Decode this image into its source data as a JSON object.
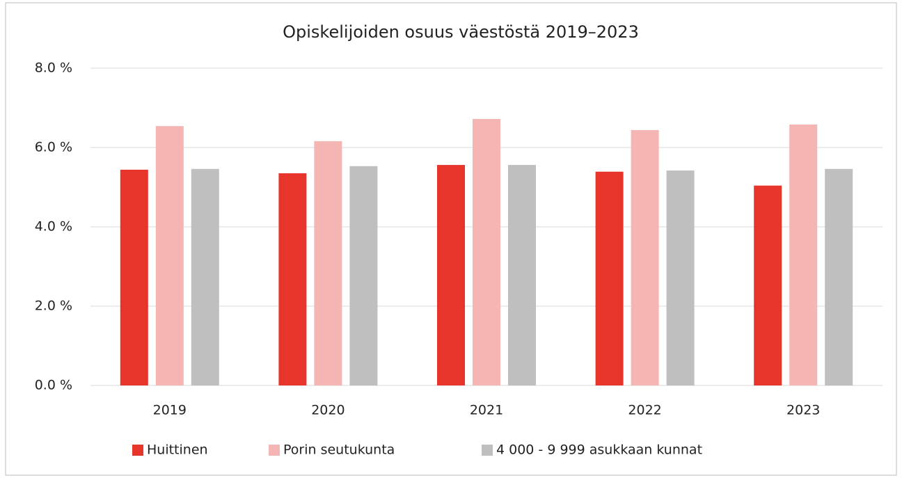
{
  "chart_data": {
    "type": "bar",
    "title": "Opiskelijoiden osuus väestöstä 2019–2023",
    "categories": [
      "2019",
      "2020",
      "2021",
      "2022",
      "2023"
    ],
    "series": [
      {
        "name": "Huittinen",
        "color": "#e8352b",
        "values": [
          5.44,
          5.35,
          5.56,
          5.39,
          5.04
        ]
      },
      {
        "name": "Porin seutukunta",
        "color": "#f5b5b3",
        "values": [
          6.54,
          6.16,
          6.72,
          6.44,
          6.58
        ]
      },
      {
        "name": "4 000 - 9 999 asukkaan kunnat",
        "color": "#bfbfbf",
        "values": [
          5.46,
          5.53,
          5.56,
          5.42,
          5.46
        ]
      }
    ],
    "ylim": [
      0,
      8
    ],
    "yticks": [
      {
        "value": 0,
        "label": "0.0 %"
      },
      {
        "value": 2,
        "label": "2.0 %"
      },
      {
        "value": 4,
        "label": "4.0 %"
      },
      {
        "value": 6,
        "label": "6.0 %"
      },
      {
        "value": 8,
        "label": "8.0 %"
      }
    ],
    "grid": true,
    "legend": "bottom"
  }
}
